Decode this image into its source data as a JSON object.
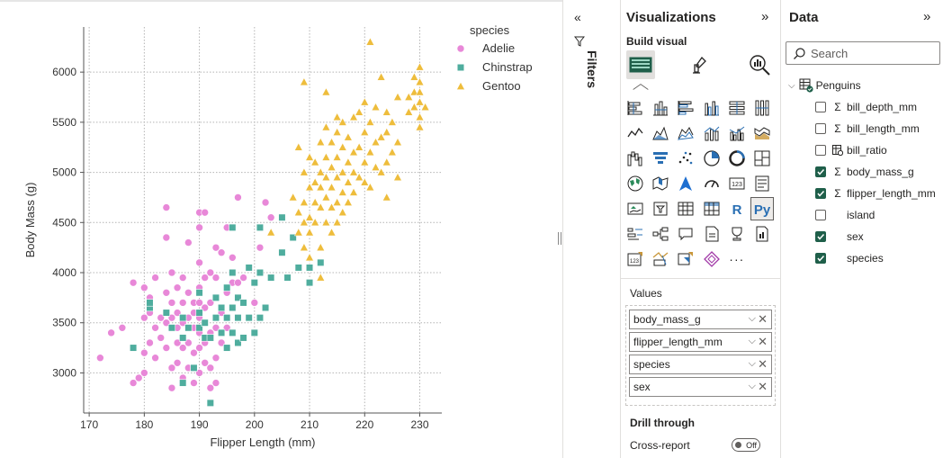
{
  "chart_data": {
    "type": "scatter",
    "xlabel": "Flipper Length (mm)",
    "ylabel": "Body Mass (g)",
    "xlim": [
      169,
      234
    ],
    "ylim": [
      2600,
      6450
    ],
    "xticks": [
      170,
      180,
      190,
      200,
      210,
      220,
      230
    ],
    "yticks": [
      3000,
      3500,
      4000,
      4500,
      5000,
      5500,
      6000
    ],
    "grid": "dotted",
    "legend_title": "species",
    "legend_position": "top-right",
    "series": [
      {
        "name": "Adelie",
        "color": "#e888d8",
        "marker": "circle",
        "points": [
          [
            172,
            3150
          ],
          [
            174,
            3400
          ],
          [
            176,
            3450
          ],
          [
            178,
            2900
          ],
          [
            178,
            3900
          ],
          [
            179,
            2950
          ],
          [
            180,
            3000
          ],
          [
            180,
            3200
          ],
          [
            180,
            3550
          ],
          [
            180,
            3850
          ],
          [
            181,
            3300
          ],
          [
            181,
            3600
          ],
          [
            181,
            3750
          ],
          [
            182,
            3150
          ],
          [
            182,
            3450
          ],
          [
            182,
            3950
          ],
          [
            183,
            3350
          ],
          [
            183,
            3550
          ],
          [
            184,
            3250
          ],
          [
            184,
            3500
          ],
          [
            184,
            3800
          ],
          [
            184,
            4650
          ],
          [
            185,
            2850
          ],
          [
            185,
            3050
          ],
          [
            185,
            3550
          ],
          [
            185,
            3700
          ],
          [
            185,
            4000
          ],
          [
            186,
            3100
          ],
          [
            186,
            3300
          ],
          [
            186,
            3450
          ],
          [
            186,
            3600
          ],
          [
            187,
            2950
          ],
          [
            187,
            3250
          ],
          [
            187,
            3500
          ],
          [
            187,
            3700
          ],
          [
            187,
            3950
          ],
          [
            188,
            3050
          ],
          [
            188,
            3300
          ],
          [
            188,
            3550
          ],
          [
            188,
            3800
          ],
          [
            188,
            4300
          ],
          [
            189,
            2900
          ],
          [
            189,
            3200
          ],
          [
            189,
            3450
          ],
          [
            189,
            3700
          ],
          [
            190,
            3000
          ],
          [
            190,
            3250
          ],
          [
            190,
            3400
          ],
          [
            190,
            3550
          ],
          [
            190,
            3700
          ],
          [
            190,
            3850
          ],
          [
            190,
            4100
          ],
          [
            190,
            4450
          ],
          [
            190,
            4600
          ],
          [
            191,
            3100
          ],
          [
            191,
            3300
          ],
          [
            191,
            3650
          ],
          [
            191,
            3950
          ],
          [
            191,
            4600
          ],
          [
            192,
            2850
          ],
          [
            192,
            3050
          ],
          [
            192,
            3400
          ],
          [
            192,
            3700
          ],
          [
            192,
            4000
          ],
          [
            193,
            2900
          ],
          [
            193,
            3150
          ],
          [
            193,
            3450
          ],
          [
            193,
            3750
          ],
          [
            193,
            3950
          ],
          [
            193,
            4250
          ],
          [
            194,
            3300
          ],
          [
            194,
            3600
          ],
          [
            194,
            4200
          ],
          [
            195,
            3450
          ],
          [
            195,
            3800
          ],
          [
            195,
            4450
          ],
          [
            196,
            3650
          ],
          [
            196,
            3900
          ],
          [
            196,
            4150
          ],
          [
            197,
            3900
          ],
          [
            197,
            4750
          ],
          [
            198,
            3950
          ],
          [
            199,
            4050
          ],
          [
            200,
            3700
          ],
          [
            201,
            4250
          ],
          [
            202,
            4700
          ],
          [
            203,
            4550
          ],
          [
            184,
            4350
          ],
          [
            186,
            3850
          ],
          [
            189,
            3600
          ]
        ]
      },
      {
        "name": "Chinstrap",
        "color": "#4fad9e",
        "marker": "square",
        "points": [
          [
            178,
            3250
          ],
          [
            181,
            3650
          ],
          [
            181,
            3700
          ],
          [
            184,
            3600
          ],
          [
            185,
            3450
          ],
          [
            187,
            2900
          ],
          [
            187,
            3350
          ],
          [
            187,
            3550
          ],
          [
            188,
            3450
          ],
          [
            189,
            3050
          ],
          [
            190,
            3450
          ],
          [
            190,
            3600
          ],
          [
            190,
            3800
          ],
          [
            191,
            3350
          ],
          [
            191,
            3500
          ],
          [
            192,
            2700
          ],
          [
            192,
            3350
          ],
          [
            193,
            3550
          ],
          [
            193,
            3750
          ],
          [
            194,
            3400
          ],
          [
            194,
            3650
          ],
          [
            195,
            3250
          ],
          [
            195,
            3550
          ],
          [
            195,
            3850
          ],
          [
            196,
            3400
          ],
          [
            196,
            3650
          ],
          [
            196,
            4000
          ],
          [
            197,
            3300
          ],
          [
            197,
            3550
          ],
          [
            197,
            3750
          ],
          [
            198,
            3350
          ],
          [
            198,
            3700
          ],
          [
            199,
            3550
          ],
          [
            199,
            4050
          ],
          [
            200,
            3400
          ],
          [
            200,
            3900
          ],
          [
            201,
            3550
          ],
          [
            201,
            4000
          ],
          [
            201,
            4450
          ],
          [
            202,
            3650
          ],
          [
            203,
            3950
          ],
          [
            205,
            4200
          ],
          [
            205,
            4550
          ],
          [
            206,
            3950
          ],
          [
            207,
            4350
          ],
          [
            208,
            4050
          ],
          [
            210,
            3900
          ],
          [
            210,
            4050
          ],
          [
            212,
            4100
          ],
          [
            196,
            4450
          ]
        ]
      },
      {
        "name": "Gentoo",
        "color": "#eebd3c",
        "marker": "triangle",
        "points": [
          [
            203,
            4400
          ],
          [
            207,
            4750
          ],
          [
            208,
            4400
          ],
          [
            208,
            4600
          ],
          [
            208,
            5250
          ],
          [
            209,
            4250
          ],
          [
            209,
            4500
          ],
          [
            209,
            4700
          ],
          [
            209,
            5000
          ],
          [
            210,
            4150
          ],
          [
            210,
            4400
          ],
          [
            210,
            4550
          ],
          [
            210,
            4850
          ],
          [
            210,
            5150
          ],
          [
            211,
            4500
          ],
          [
            211,
            4700
          ],
          [
            211,
            4900
          ],
          [
            211,
            5100
          ],
          [
            212,
            4250
          ],
          [
            212,
            4650
          ],
          [
            212,
            4850
          ],
          [
            212,
            5000
          ],
          [
            212,
            5300
          ],
          [
            213,
            4500
          ],
          [
            213,
            4750
          ],
          [
            213,
            4950
          ],
          [
            213,
            5150
          ],
          [
            213,
            5450
          ],
          [
            213,
            5800
          ],
          [
            214,
            4400
          ],
          [
            214,
            4650
          ],
          [
            214,
            4850
          ],
          [
            214,
            5050
          ],
          [
            214,
            5300
          ],
          [
            215,
            4500
          ],
          [
            215,
            4700
          ],
          [
            215,
            4950
          ],
          [
            215,
            5150
          ],
          [
            215,
            5400
          ],
          [
            215,
            5550
          ],
          [
            216,
            4600
          ],
          [
            216,
            4800
          ],
          [
            216,
            5000
          ],
          [
            216,
            5250
          ],
          [
            216,
            5500
          ],
          [
            217,
            4700
          ],
          [
            217,
            4900
          ],
          [
            217,
            5100
          ],
          [
            217,
            5350
          ],
          [
            218,
            4800
          ],
          [
            218,
            5000
          ],
          [
            218,
            5200
          ],
          [
            218,
            5550
          ],
          [
            219,
            4950
          ],
          [
            219,
            5250
          ],
          [
            219,
            5600
          ],
          [
            220,
            4900
          ],
          [
            220,
            5100
          ],
          [
            220,
            5400
          ],
          [
            220,
            5700
          ],
          [
            221,
            4850
          ],
          [
            221,
            5200
          ],
          [
            221,
            5500
          ],
          [
            221,
            6300
          ],
          [
            222,
            5050
          ],
          [
            222,
            5300
          ],
          [
            222,
            5650
          ],
          [
            223,
            5000
          ],
          [
            223,
            5350
          ],
          [
            223,
            5950
          ],
          [
            224,
            5100
          ],
          [
            224,
            5400
          ],
          [
            224,
            5600
          ],
          [
            225,
            5200
          ],
          [
            225,
            5500
          ],
          [
            226,
            5300
          ],
          [
            226,
            5750
          ],
          [
            228,
            5600
          ],
          [
            228,
            5750
          ],
          [
            229,
            5650
          ],
          [
            229,
            5800
          ],
          [
            229,
            5950
          ],
          [
            230,
            5550
          ],
          [
            230,
            5700
          ],
          [
            230,
            5800
          ],
          [
            230,
            5900
          ],
          [
            230,
            6050
          ],
          [
            230,
            5450
          ],
          [
            231,
            5650
          ],
          [
            224,
            4750
          ],
          [
            212,
            3950
          ],
          [
            209,
            5900
          ],
          [
            220,
            5400
          ],
          [
            226,
            4950
          ]
        ]
      }
    ]
  },
  "filters": {
    "label": "Filters"
  },
  "viz_pane": {
    "title": "Visualizations",
    "build_visual": "Build visual",
    "values_label": "Values",
    "wells": [
      "body_mass_g",
      "flipper_length_mm",
      "species",
      "sex"
    ],
    "drill_through": "Drill through",
    "cross_report": "Cross-report",
    "cross_report_state": "Off",
    "visual_types": [
      "stacked-bar",
      "stacked-column",
      "clustered-bar",
      "clustered-column",
      "100pct-bar",
      "100pct-column",
      "line",
      "area",
      "stacked-area",
      "line-column",
      "line-clustered-column",
      "ribbon",
      "waterfall",
      "funnel",
      "scatter",
      "pie",
      "donut",
      "treemap",
      "map",
      "filled-map",
      "azure-map",
      "gauge",
      "card",
      "multi-row-card",
      "kpi",
      "slicer",
      "table",
      "matrix",
      "r-visual",
      "python-visual",
      "key-influencers",
      "decomposition-tree",
      "qa",
      "smart-narrative",
      "metrics",
      "paginated-report",
      "power-apps",
      "power-automate",
      "custom-visual-1",
      "custom-visual-2",
      "more"
    ],
    "selected_visual": "python-visual"
  },
  "data_pane": {
    "title": "Data",
    "search_placeholder": "Search",
    "table_name": "Penguins",
    "fields": [
      {
        "name": "bill_depth_mm",
        "type": "sigma",
        "checked": false
      },
      {
        "name": "bill_length_mm",
        "type": "sigma",
        "checked": false
      },
      {
        "name": "bill_ratio",
        "type": "calc",
        "checked": false
      },
      {
        "name": "body_mass_g",
        "type": "sigma",
        "checked": true
      },
      {
        "name": "flipper_length_mm",
        "type": "sigma",
        "checked": true
      },
      {
        "name": "island",
        "type": "text",
        "checked": false
      },
      {
        "name": "sex",
        "type": "text",
        "checked": true
      },
      {
        "name": "species",
        "type": "text",
        "checked": true
      }
    ]
  }
}
